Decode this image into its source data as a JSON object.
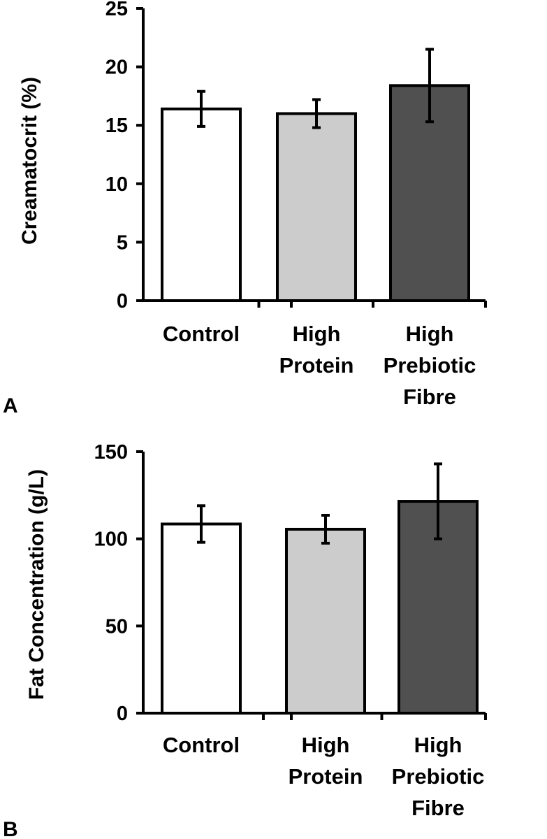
{
  "chart_data": [
    {
      "type": "bar",
      "panel": "A",
      "ylabel": "Creamatocrit (%)",
      "xlabel": "",
      "ylim": [
        0,
        25
      ],
      "yticks": [
        0,
        5,
        10,
        15,
        20,
        25
      ],
      "categories": [
        [
          "Control"
        ],
        [
          "High",
          "Protein"
        ],
        [
          "High",
          "Prebiotic",
          "Fibre"
        ]
      ],
      "values": [
        16.4,
        16.0,
        18.4
      ],
      "errors": [
        1.5,
        1.2,
        3.1
      ],
      "colors": [
        "#ffffff",
        "#cccccc",
        "#505050"
      ],
      "grid": false
    },
    {
      "type": "bar",
      "panel": "B",
      "ylabel": "Fat Concentration (g/L)",
      "xlabel": "",
      "ylim": [
        0,
        150
      ],
      "yticks": [
        0,
        50,
        100,
        150
      ],
      "categories": [
        [
          "Control"
        ],
        [
          "High",
          "Protein"
        ],
        [
          "High",
          "Prebiotic",
          "Fibre"
        ]
      ],
      "values": [
        108.5,
        105.5,
        121.5
      ],
      "errors": [
        10.5,
        8.0,
        21.5
      ],
      "colors": [
        "#ffffff",
        "#cccccc",
        "#505050"
      ],
      "grid": false
    }
  ]
}
